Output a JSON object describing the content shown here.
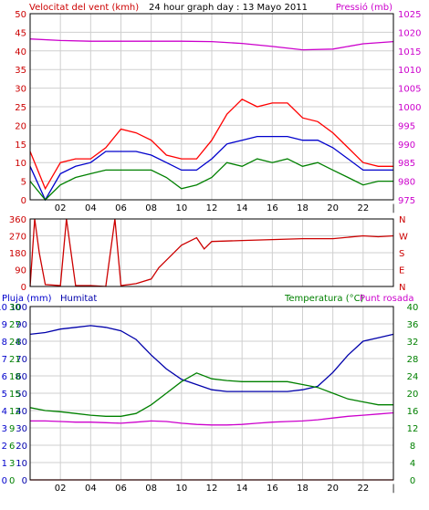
{
  "chart_data": [
    {
      "type": "line",
      "title": "24 hour graph day : 13 Mayo 2011",
      "left_label": "Velocitat del vent (kmh)",
      "right_label": "Pressió (mb)",
      "x_ticks": [
        "02",
        "04",
        "06",
        "08",
        "10",
        "12",
        "14",
        "16",
        "18",
        "20",
        "22",
        "|"
      ],
      "y_left_ticks": [
        "50",
        "45",
        "40",
        "35",
        "30",
        "25",
        "20",
        "15",
        "10",
        "5",
        "0"
      ],
      "y_left_range": [
        0,
        50
      ],
      "y_right_ticks": [
        "1025",
        "1020",
        "1015",
        "1010",
        "1005",
        "1000",
        "995",
        "990",
        "985",
        "980",
        "975"
      ],
      "y_right_range": [
        975,
        1025
      ],
      "grid": true,
      "series": [
        {
          "key": "gust",
          "color": "#ff0000",
          "axis": "left",
          "x": [
            0,
            1,
            2,
            3,
            4,
            5,
            6,
            7,
            8,
            9,
            10,
            11,
            12,
            13,
            14,
            15,
            16,
            17,
            18,
            19,
            20,
            21,
            22,
            23,
            24
          ],
          "y": [
            13,
            3,
            10,
            11,
            11,
            14,
            19,
            18,
            16,
            12,
            11,
            11,
            16,
            23,
            27,
            25,
            26,
            26,
            22,
            21,
            18,
            14,
            10,
            9,
            9
          ]
        },
        {
          "key": "wind_avg",
          "color": "#0000cc",
          "axis": "left",
          "x": [
            0,
            1,
            2,
            3,
            4,
            5,
            6,
            7,
            8,
            9,
            10,
            11,
            12,
            13,
            14,
            15,
            16,
            17,
            18,
            19,
            20,
            21,
            22,
            23,
            24
          ],
          "y": [
            9,
            0,
            7,
            9,
            10,
            13,
            13,
            13,
            12,
            10,
            8,
            8,
            11,
            15,
            16,
            17,
            17,
            17,
            16,
            16,
            14,
            11,
            8,
            8,
            8
          ]
        },
        {
          "key": "wind_low",
          "color": "#008000",
          "axis": "left",
          "x": [
            0,
            1,
            2,
            3,
            4,
            5,
            6,
            7,
            8,
            9,
            10,
            11,
            12,
            13,
            14,
            15,
            16,
            17,
            18,
            19,
            20,
            21,
            22,
            23,
            24
          ],
          "y": [
            5,
            0,
            4,
            6,
            7,
            8,
            8,
            8,
            8,
            6,
            3,
            4,
            6,
            10,
            9,
            11,
            10,
            11,
            9,
            10,
            8,
            6,
            4,
            5,
            5
          ]
        },
        {
          "key": "pressure",
          "color": "#cc00cc",
          "axis": "right",
          "x": [
            0,
            2,
            4,
            6,
            8,
            10,
            12,
            14,
            16,
            18,
            20,
            22,
            24
          ],
          "y": [
            1018.2,
            1017.8,
            1017.6,
            1017.6,
            1017.6,
            1017.6,
            1017.5,
            1017,
            1016.2,
            1015.3,
            1015.5,
            1016.9,
            1017.5
          ]
        }
      ]
    },
    {
      "type": "scatter",
      "left_label": "",
      "y_left_ticks": [
        "360",
        "270",
        "180",
        "90",
        "0"
      ],
      "y_left_range": [
        0,
        360
      ],
      "y_right_ticks": [
        "N",
        "W",
        "S",
        "E",
        "N"
      ],
      "x_ticks": [
        "02",
        "04",
        "06",
        "08",
        "10",
        "12",
        "14",
        "16",
        "18",
        "20",
        "22",
        "|"
      ],
      "series": [
        {
          "key": "wind_dir",
          "color": "#cc0000",
          "x": [
            0,
            0.3,
            0.6,
            1,
            2,
            2.4,
            3,
            4,
            5,
            5.6,
            6,
            7,
            8,
            8.5,
            9,
            10,
            11,
            11.5,
            12,
            14,
            16,
            18,
            20,
            22,
            23,
            24
          ],
          "y": [
            0,
            360,
            180,
            10,
            5,
            360,
            5,
            5,
            0,
            360,
            5,
            15,
            40,
            100,
            140,
            220,
            260,
            200,
            240,
            245,
            250,
            255,
            255,
            270,
            265,
            270
          ]
        }
      ]
    },
    {
      "type": "line",
      "left_labels": [
        "Pluja (mm)",
        "Humitat"
      ],
      "right_labels": [
        "Temperatura (°C)",
        "Punt rosada"
      ],
      "y_rain_ticks": [
        "10",
        "9",
        "8",
        "7",
        "6",
        "5",
        "4",
        "3",
        "2",
        "1",
        "0"
      ],
      "y_rain_range": [
        0,
        10
      ],
      "y_hum_ticks": [
        "100",
        "90",
        "80",
        "70",
        "60",
        "50",
        "40",
        "30",
        "20",
        "10",
        "0"
      ],
      "y_hum_range": [
        0,
        100
      ],
      "y_temp_ticks": [
        "30",
        "27",
        "24",
        "21",
        "18",
        "15",
        "12",
        "9",
        "6",
        "3",
        "0"
      ],
      "y_temp_range": [
        0,
        30
      ],
      "y_right_ticks": [
        "40",
        "36",
        "32",
        "28",
        "24",
        "20",
        "16",
        "12",
        "8",
        "4",
        "0"
      ],
      "y_right_range": [
        0,
        40
      ],
      "x_ticks": [
        "02",
        "04",
        "06",
        "08",
        "10",
        "12",
        "14",
        "16",
        "18",
        "20",
        "22",
        "|"
      ],
      "series": [
        {
          "key": "humidity",
          "color": "#0000aa",
          "axis": "hum",
          "x": [
            0,
            1,
            2,
            3,
            4,
            5,
            6,
            7,
            8,
            9,
            10,
            11,
            12,
            13,
            14,
            15,
            16,
            17,
            18,
            19,
            20,
            21,
            22,
            23,
            24
          ],
          "y": [
            84,
            85,
            87,
            88,
            89,
            88,
            86,
            81,
            72,
            64,
            58,
            55,
            52,
            51,
            51,
            51,
            51,
            51,
            52,
            54,
            62,
            72,
            80,
            82,
            84
          ]
        },
        {
          "key": "temperature",
          "color": "#008000",
          "axis": "temp",
          "x": [
            0,
            1,
            2,
            3,
            4,
            5,
            6,
            7,
            8,
            9,
            10,
            11,
            12,
            13,
            14,
            15,
            16,
            17,
            18,
            19,
            20,
            21,
            22,
            23,
            24
          ],
          "y": [
            12.5,
            12,
            11.8,
            11.5,
            11.2,
            11,
            11,
            11.5,
            13,
            15,
            17,
            18.5,
            17.5,
            17.2,
            17,
            17,
            17,
            17,
            16.5,
            16,
            15,
            14,
            13.5,
            13,
            13
          ]
        },
        {
          "key": "dew_point",
          "color": "#cc00cc",
          "axis": "temp",
          "x": [
            0,
            1,
            2,
            3,
            4,
            5,
            6,
            7,
            8,
            9,
            10,
            11,
            12,
            13,
            14,
            15,
            16,
            17,
            18,
            19,
            20,
            21,
            22,
            23,
            24
          ],
          "y": [
            10.2,
            10.2,
            10.1,
            10,
            10,
            9.9,
            9.8,
            10,
            10.2,
            10.1,
            9.8,
            9.6,
            9.5,
            9.5,
            9.6,
            9.8,
            10,
            10.1,
            10.2,
            10.4,
            10.7,
            11,
            11.2,
            11.4,
            11.6
          ]
        },
        {
          "key": "rain",
          "color": "#cc0000",
          "axis": "rain",
          "x": [
            0,
            24
          ],
          "y": [
            0,
            0
          ]
        }
      ]
    }
  ]
}
